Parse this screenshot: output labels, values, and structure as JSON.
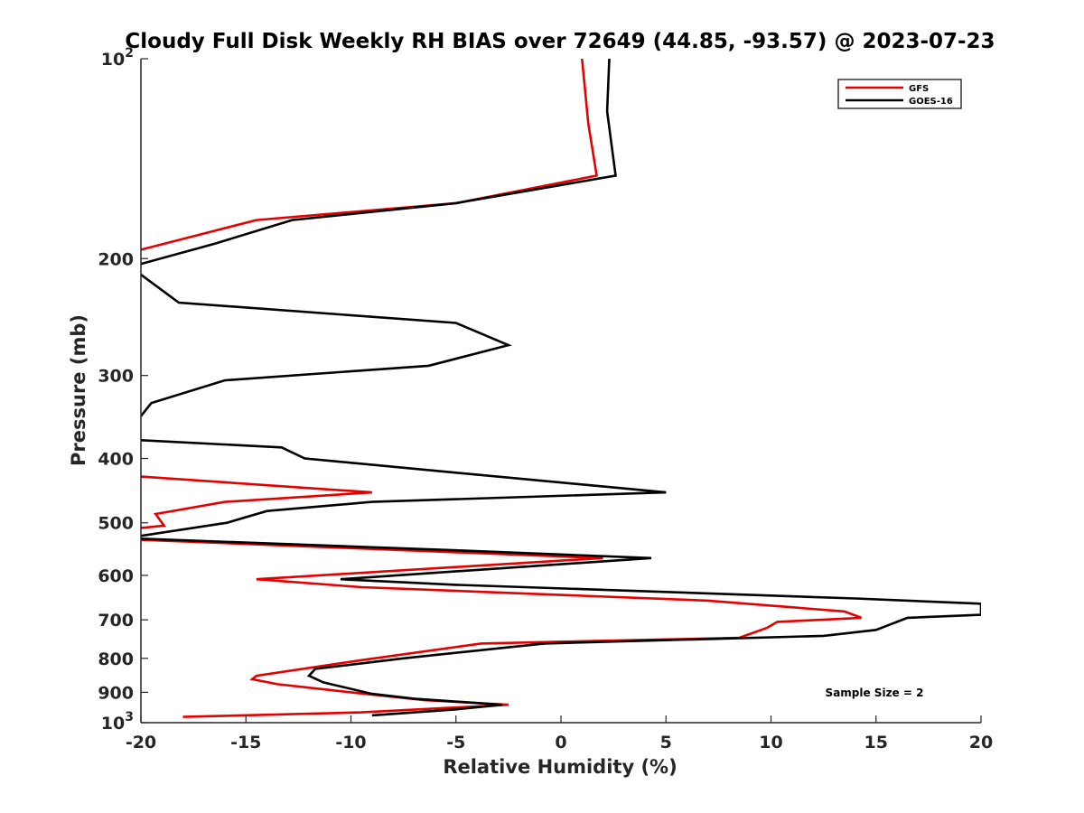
{
  "chart_data": {
    "type": "line",
    "title": "Cloudy Full Disk Weekly RH BIAS over 72649 (44.85, -93.57) @ 2023-07-23",
    "xlabel": "Relative Humidity (%)",
    "ylabel": "Pressure (mb)",
    "xlim": [
      -20,
      20
    ],
    "ylim": [
      1000,
      100
    ],
    "yscale": "log",
    "y_reversed": true,
    "grid": false,
    "legend_position": "top-right",
    "x_ticks": [
      {
        "value": -20,
        "label": "-20"
      },
      {
        "value": -15,
        "label": "-15"
      },
      {
        "value": -10,
        "label": "-10"
      },
      {
        "value": -5,
        "label": "-5"
      },
      {
        "value": 0,
        "label": "0"
      },
      {
        "value": 5,
        "label": "5"
      },
      {
        "value": 10,
        "label": "10"
      },
      {
        "value": 15,
        "label": "15"
      },
      {
        "value": 20,
        "label": "20"
      }
    ],
    "y_ticks": [
      {
        "value": 100,
        "base": "10",
        "exp": "2"
      },
      {
        "value": 200,
        "label": "200"
      },
      {
        "value": 300,
        "label": "300"
      },
      {
        "value": 400,
        "label": "400"
      },
      {
        "value": 500,
        "label": "500"
      },
      {
        "value": 600,
        "label": "600"
      },
      {
        "value": 700,
        "label": "700"
      },
      {
        "value": 800,
        "label": "800"
      },
      {
        "value": 900,
        "label": "900"
      },
      {
        "value": 1000,
        "base": "10",
        "exp": "3"
      }
    ],
    "series": [
      {
        "name": "GFS",
        "color": "#e50000",
        "segments": [
          [
            [
              1.0,
              100
            ],
            [
              1.3,
              125
            ],
            [
              1.7,
              150
            ],
            [
              -5.0,
              165
            ],
            [
              -14.5,
              175
            ],
            [
              -20.3,
              195
            ]
          ],
          [
            [
              -20.4,
              425
            ],
            [
              -9.0,
              450
            ],
            [
              -16.0,
              465
            ],
            [
              -19.3,
              485
            ],
            [
              -18.9,
              505
            ],
            [
              -20.3,
              510
            ]
          ],
          [
            [
              -20.3,
              530
            ],
            [
              2.0,
              565
            ],
            [
              -14.5,
              608
            ],
            [
              -9.5,
              625
            ],
            [
              7.0,
              655
            ],
            [
              13.5,
              680
            ],
            [
              14.3,
              695
            ],
            [
              10.3,
              705
            ],
            [
              9.8,
              720
            ],
            [
              8.5,
              745
            ],
            [
              -3.8,
              760
            ],
            [
              -9.5,
              805
            ],
            [
              -14.5,
              850
            ],
            [
              -14.7,
              860
            ],
            [
              -13.5,
              875
            ],
            [
              -10.0,
              900
            ],
            [
              -6.5,
              925
            ],
            [
              -2.5,
              940
            ],
            [
              -9.5,
              965
            ],
            [
              -18.0,
              980
            ]
          ]
        ]
      },
      {
        "name": "GOES-16",
        "color": "#000000",
        "segments": [
          [
            [
              2.3,
              100
            ],
            [
              2.2,
              120
            ],
            [
              2.6,
              150
            ],
            [
              -5.0,
              165
            ],
            [
              -12.8,
              175
            ],
            [
              -16.5,
              190
            ],
            [
              -20.3,
              205
            ]
          ],
          [
            [
              -20.3,
              208
            ],
            [
              -18.2,
              233
            ],
            [
              -5.0,
              250
            ],
            [
              -2.5,
              270
            ],
            [
              -6.3,
              290
            ],
            [
              -16.0,
              305
            ],
            [
              -19.5,
              330
            ],
            [
              -20.3,
              355
            ]
          ],
          [
            [
              -20.3,
              375
            ],
            [
              -13.3,
              385
            ],
            [
              -12.2,
              400
            ],
            [
              5.0,
              450
            ],
            [
              -9.0,
              465
            ],
            [
              -14.0,
              480
            ],
            [
              -15.9,
              500
            ],
            [
              -20.3,
              525
            ]
          ],
          [
            [
              -20.3,
              528
            ],
            [
              -5.0,
              550
            ],
            [
              4.3,
              565
            ],
            [
              -10.5,
              608
            ],
            [
              -5.0,
              620
            ],
            [
              14.0,
              650
            ],
            [
              20.0,
              662
            ],
            [
              20.0,
              688
            ],
            [
              16.5,
              695
            ],
            [
              15.0,
              725
            ],
            [
              12.5,
              740
            ],
            [
              -0.8,
              760
            ],
            [
              -7.5,
              800
            ],
            [
              -11.7,
              830
            ],
            [
              -12.0,
              850
            ],
            [
              -11.3,
              870
            ],
            [
              -9.0,
              905
            ],
            [
              -7.0,
              920
            ],
            [
              -2.8,
              940
            ],
            [
              -5.0,
              955
            ],
            [
              -9.0,
              975
            ]
          ]
        ]
      }
    ],
    "legend": [
      {
        "name": "GFS",
        "color": "#e50000"
      },
      {
        "name": "GOES-16",
        "color": "#000000"
      }
    ],
    "annotation": "Sample Size = 2"
  }
}
